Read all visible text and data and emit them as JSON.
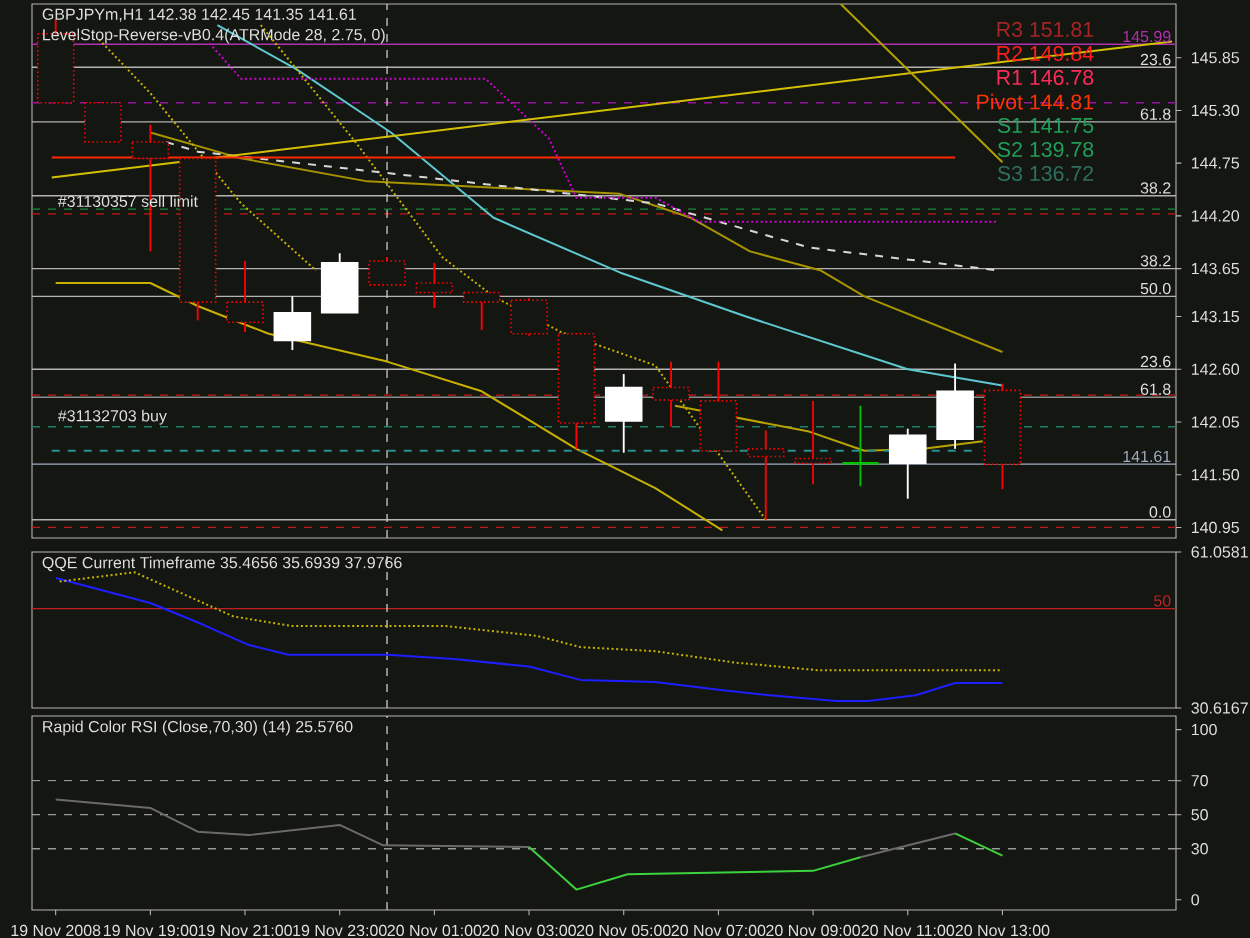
{
  "chart_data": [
    {
      "type": "candlestick",
      "title": "GBPJPYm,H1 142.38 142.45 141.35 141.61",
      "subtitle": "LevelStop-Reverse-vB0.4(ATRMode 28, 2.75, 0)",
      "x": [
        "2008-11-19T17:00",
        "2008-11-19T18:00",
        "2008-11-19T19:00",
        "2008-11-19T20:00",
        "2008-11-19T21:00",
        "2008-11-19T22:00",
        "2008-11-19T23:00",
        "2008-11-20T00:00",
        "2008-11-20T01:00",
        "2008-11-20T02:00",
        "2008-11-20T03:00",
        "2008-11-20T04:00",
        "2008-11-20T05:00",
        "2008-11-20T06:00",
        "2008-11-20T07:00",
        "2008-11-20T08:00",
        "2008-11-20T09:00",
        "2008-11-20T10:00",
        "2008-11-20T11:00",
        "2008-11-20T12:00",
        "2008-11-20T13:00"
      ],
      "ohlc": [
        [
          146.1,
          146.25,
          145.38,
          145.38
        ],
        [
          145.38,
          145.38,
          144.97,
          144.97
        ],
        [
          144.97,
          145.15,
          143.83,
          144.8
        ],
        [
          144.8,
          144.8,
          143.11,
          143.3
        ],
        [
          143.3,
          143.73,
          142.99,
          143.09
        ],
        [
          142.9,
          143.36,
          142.8,
          143.19
        ],
        [
          143.19,
          143.81,
          143.19,
          143.71
        ],
        [
          143.73,
          143.77,
          143.48,
          143.48
        ],
        [
          143.5,
          143.71,
          143.24,
          143.4
        ],
        [
          143.4,
          143.4,
          143.01,
          143.3
        ],
        [
          143.32,
          143.34,
          142.95,
          142.97
        ],
        [
          142.97,
          142.97,
          141.77,
          142.04
        ],
        [
          142.06,
          142.55,
          141.73,
          142.41
        ],
        [
          142.41,
          142.68,
          142.0,
          142.28
        ],
        [
          142.27,
          142.68,
          141.75,
          141.75
        ],
        [
          141.77,
          141.96,
          141.03,
          141.69
        ],
        [
          141.67,
          142.27,
          141.4,
          141.62
        ],
        [
          141.62,
          142.22,
          141.38,
          141.62
        ],
        [
          141.62,
          141.98,
          141.25,
          141.91
        ],
        [
          141.87,
          142.66,
          141.77,
          142.37
        ],
        [
          142.38,
          142.45,
          141.35,
          141.61
        ]
      ],
      "colors": [
        "#ff0000",
        "#ff0000",
        "#ff0000",
        "#ff0000",
        "#ff0000",
        "#ffffff",
        "#ffffff",
        "#ff0000",
        "#ff0000",
        "#ff0000",
        "#ff0000",
        "#ff0000",
        "#ffffff",
        "#ff0000",
        "#ff0000",
        "#ff0000",
        "#ff0000",
        "#00c000",
        "#ffffff",
        "#ffffff",
        "#ff0000"
      ],
      "xlim": [
        "2008-11-19T16:30",
        "2008-11-20T16:40"
      ],
      "ylim": [
        140.84,
        146.41
      ],
      "yticks": [
        {
          "value": 140.95,
          "label": "140.95"
        },
        {
          "value": 141.5,
          "label": "141.50"
        },
        {
          "value": 142.05,
          "label": "142.05"
        },
        {
          "value": 142.6,
          "label": "142.60"
        },
        {
          "value": 143.15,
          "label": "143.15"
        },
        {
          "value": 143.65,
          "label": "143.65"
        },
        {
          "value": 144.2,
          "label": "144.20"
        },
        {
          "value": 144.75,
          "label": "144.75"
        },
        {
          "value": 145.3,
          "label": "145.30"
        },
        {
          "value": 145.85,
          "label": "145.85"
        }
      ],
      "tick_labels": "y",
      "series": [
        {
          "type": "line",
          "color": "#5ec8d0",
          "x": [
            "2008-11-19T20:25",
            "2008-11-19T22:05",
            "2008-11-20T00:05",
            "2008-11-20T02:15",
            "2008-11-20T04:55",
            "2008-11-20T07:35",
            "2008-11-20T11:00",
            "2008-11-20T13:00"
          ],
          "values": [
            146.19,
            145.73,
            145.07,
            144.18,
            143.61,
            143.15,
            142.6,
            142.43
          ]
        },
        {
          "type": "line",
          "color": "#c8b000",
          "x": [
            "2008-11-19T17:00",
            "2008-11-19T19:00",
            "2008-11-19T20:00",
            "2008-11-19T21:30",
            "2008-11-20T00:00",
            "2008-11-20T02:00",
            "2008-11-20T04:00",
            "2008-11-20T05:40",
            "2008-11-20T07:05"
          ],
          "values": [
            143.5,
            143.5,
            143.26,
            142.97,
            142.68,
            142.37,
            141.77,
            141.36,
            140.92
          ]
        },
        {
          "type": "line",
          "color": "#a89400",
          "x": [
            "2008-11-19T19:00",
            "2008-11-19T20:55",
            "2008-11-19T23:35",
            "2008-11-20T04:55",
            "2008-11-20T06:25",
            "2008-11-20T07:40",
            "2008-11-20T09:10",
            "2008-11-20T10:05",
            "2008-11-20T13:00"
          ],
          "values": [
            145.07,
            144.8,
            144.56,
            144.43,
            144.18,
            143.83,
            143.63,
            143.36,
            142.78
          ]
        },
        {
          "type": "line",
          "color": "#c8b400",
          "line_style": "dotted",
          "x": [
            "2008-11-19T17:55",
            "2008-11-19T19:00",
            "2008-11-19T20:55",
            "2008-11-19T22:30"
          ],
          "values": [
            146.04,
            145.48,
            144.33,
            143.63
          ]
        },
        {
          "type": "line",
          "color": "#c8b400",
          "line_style": "dotted",
          "x": [
            "2008-11-19T21:20",
            "2008-11-19T23:20",
            "2008-11-20T01:10",
            "2008-11-20T02:15",
            "2008-11-20T03:40",
            "2008-11-20T05:40",
            "2008-11-20T08:00"
          ],
          "values": [
            146.19,
            144.97,
            143.77,
            143.36,
            142.99,
            142.64,
            141.03
          ]
        },
        {
          "type": "line",
          "color": "#b8a400",
          "x": [
            "2008-11-20T06:05",
            "2008-11-20T08:55",
            "2008-11-20T10:05",
            "2008-11-20T11:20",
            "2008-11-20T12:35"
          ],
          "values": [
            142.22,
            141.95,
            141.75,
            141.77,
            141.85
          ]
        },
        {
          "type": "line",
          "color": "#d8d8d8",
          "line_style": "dashed",
          "x": [
            "2008-11-19T19:20",
            "2008-11-19T20:00",
            "2008-11-20T05:40",
            "2008-11-20T08:55",
            "2008-11-20T12:55"
          ],
          "values": [
            144.97,
            144.87,
            144.33,
            143.87,
            143.63
          ]
        },
        {
          "type": "line",
          "color": "#d000d0",
          "line_style": "dotted",
          "x": [
            "2008-11-19T20:15",
            "2008-11-19T20:55",
            "2008-11-20T02:05",
            "2008-11-20T03:25",
            "2008-11-20T04:00",
            "2008-11-20T05:40",
            "2008-11-20T06:35",
            "2008-11-20T12:55"
          ],
          "values": [
            146.0,
            145.63,
            145.63,
            145.01,
            144.39,
            144.39,
            144.14,
            144.14
          ]
        },
        {
          "type": "line",
          "color": "#d4c000",
          "x": [
            "2008-11-19T16:55",
            "2008-11-20T16:35"
          ],
          "values": [
            144.6,
            146.02
          ]
        },
        {
          "type": "line",
          "color": "#b4a000",
          "x": [
            "2008-11-20T09:35",
            "2008-11-20T13:00"
          ],
          "values": [
            146.41,
            144.76
          ]
        },
        {
          "type": "line",
          "color": "#ff2a00",
          "x": [
            "2008-11-19T16:55",
            "2008-11-20T12:00"
          ],
          "values": [
            144.81,
            144.81
          ]
        },
        {
          "type": "line",
          "color": "#2a8c8c",
          "line_style": "dashed",
          "x": [
            "2008-11-19T16:55",
            "2008-11-20T12:25"
          ],
          "values": [
            141.75,
            141.75
          ]
        }
      ],
      "ref_lines": [
        {
          "axis": "y",
          "value": 145.99,
          "label": "145.99",
          "color": "#b030b0"
        },
        {
          "axis": "y",
          "value": 145.75,
          "color": "#b4b4b4"
        },
        {
          "axis": "y",
          "value": 145.38,
          "color": "#a010a0",
          "line_style": "dashed"
        },
        {
          "axis": "y",
          "value": 145.18,
          "color": "#b4b4b4"
        },
        {
          "axis": "y",
          "value": 144.41,
          "color": "#b4b4b4"
        },
        {
          "axis": "y",
          "value": 144.27,
          "color": "#1e8c3c",
          "line_style": "dashed"
        },
        {
          "axis": "y",
          "value": 144.22,
          "color": "#c01818",
          "line_style": "dashed"
        },
        {
          "axis": "y",
          "value": 143.65,
          "color": "#b4b4b4"
        },
        {
          "axis": "y",
          "value": 143.36,
          "color": "#b4b4b4"
        },
        {
          "axis": "y",
          "value": 142.6,
          "color": "#b4b4b4"
        },
        {
          "axis": "y",
          "value": 142.33,
          "color": "#c01818",
          "line_style": "dashed"
        },
        {
          "axis": "y",
          "value": 142.31,
          "color": "#b4b4b4"
        },
        {
          "axis": "y",
          "value": 142.0,
          "color": "#1e7e6e",
          "line_style": "dashed"
        },
        {
          "axis": "y",
          "value": 141.61,
          "label": "141.61",
          "color": "#a0acc0"
        },
        {
          "axis": "y",
          "value": 141.03,
          "color": "#b4b4b4"
        },
        {
          "axis": "y",
          "value": 140.95,
          "color": "#c01818",
          "line_style": "dashed"
        },
        {
          "axis": "x",
          "value": "2008-11-20T00:00",
          "color": "#c8c8c8",
          "line_style": "dashed"
        }
      ],
      "annotations": [
        "R3 151.81",
        "R2 149.84",
        "R1 146.78",
        "Pivot 144.81",
        "S1 141.75",
        "S2 139.78",
        "S3 136.72",
        {
          "text": "#31130357 sell limit",
          "x": "2008-11-19T17:00",
          "y": 144.27
        },
        {
          "text": "#31132703 buy",
          "x": "2008-11-19T17:00",
          "y": 142.0
        },
        {
          "text": "23.6",
          "x": "2008-11-20T16:40",
          "y": 145.75
        },
        {
          "text": "61.8",
          "x": "2008-11-20T16:40",
          "y": 145.18
        },
        {
          "text": "38.2",
          "x": "2008-11-20T16:40",
          "y": 144.41
        },
        {
          "text": "38.2",
          "x": "2008-11-20T16:40",
          "y": 143.65
        },
        {
          "text": "50.0",
          "x": "2008-11-20T16:40",
          "y": 143.36
        },
        {
          "text": "23.6",
          "x": "2008-11-20T16:40",
          "y": 142.6
        },
        {
          "text": "61.8",
          "x": "2008-11-20T16:40",
          "y": 142.31
        },
        {
          "text": "0.0",
          "x": "2008-11-20T16:40",
          "y": 141.03
        }
      ]
    },
    {
      "type": "line",
      "title": "QQE Current Timeframe 35.4656 35.6939 37.9766",
      "xlim": [
        "2008-11-19T16:30",
        "2008-11-20T16:40"
      ],
      "ylim": [
        30.6167,
        61.0581
      ],
      "yticks": [
        30.6167,
        61.0581
      ],
      "tick_labels": "y",
      "series": [
        {
          "color": "#1e1eff",
          "x": [
            "2008-11-19T17:00",
            "2008-11-19T19:00",
            "2008-11-19T20:05",
            "2008-11-19T21:05",
            "2008-11-19T21:55",
            "2008-11-20T00:00",
            "2008-11-20T01:25",
            "2008-11-20T03:00",
            "2008-11-20T04:05",
            "2008-11-20T05:40",
            "2008-11-20T07:00",
            "2008-11-20T08:05",
            "2008-11-20T09:30",
            "2008-11-20T10:10",
            "2008-11-20T11:10",
            "2008-11-20T12:00",
            "2008-11-20T13:00"
          ],
          "values": [
            56.0,
            51.1,
            47.0,
            42.9,
            41.0,
            41.0,
            40.2,
            38.7,
            36.1,
            35.7,
            34.2,
            33.1,
            32.0,
            32.0,
            33.1,
            35.5,
            35.5
          ]
        },
        {
          "color": "#c8b400",
          "line_style": "dotted",
          "x": [
            "2008-11-19T17:05",
            "2008-11-19T18:40",
            "2008-11-19T20:45",
            "2008-11-19T22:00",
            "2008-11-20T01:15",
            "2008-11-20T03:10",
            "2008-11-20T04:05",
            "2008-11-20T05:40",
            "2008-11-20T07:20",
            "2008-11-20T09:05",
            "2008-11-20T13:00"
          ],
          "values": [
            55.3,
            57.1,
            48.5,
            46.6,
            46.6,
            44.7,
            42.5,
            41.7,
            39.5,
            38.0,
            38.0
          ]
        }
      ],
      "ref_lines": [
        {
          "axis": "y",
          "value": 50,
          "label": "50",
          "color": "#c02020"
        },
        {
          "axis": "x",
          "value": "2008-11-20T00:00",
          "color": "#c8c8c8",
          "line_style": "dashed"
        }
      ]
    },
    {
      "type": "line",
      "title": "Rapid Color RSI (Close,70,30) (14) 25.5760",
      "xlim": [
        "2008-11-19T16:30",
        "2008-11-20T16:40"
      ],
      "ylim": [
        -6,
        108
      ],
      "yticks": [
        0,
        30,
        50,
        70,
        100
      ],
      "xticks": [
        {
          "value": "2008-11-19T17:00",
          "label": "19 Nov 2008"
        },
        {
          "value": "2008-11-19T19:00",
          "label": "19 Nov 19:00"
        },
        {
          "value": "2008-11-19T21:00",
          "label": "19 Nov 21:00"
        },
        {
          "value": "2008-11-19T23:00",
          "label": "19 Nov 23:00"
        },
        {
          "value": "2008-11-20T01:00",
          "label": "20 Nov 01:00"
        },
        {
          "value": "2008-11-20T03:00",
          "label": "20 Nov 03:00"
        },
        {
          "value": "2008-11-20T05:00",
          "label": "20 Nov 05:00"
        },
        {
          "value": "2008-11-20T07:00",
          "label": "20 Nov 07:00"
        },
        {
          "value": "2008-11-20T09:00",
          "label": "20 Nov 09:00"
        },
        {
          "value": "2008-11-20T11:00",
          "label": "20 Nov 11:00"
        },
        {
          "value": "2008-11-20T13:00",
          "label": "20 Nov 13:00"
        }
      ],
      "series": [
        {
          "color": "#6a6a6a",
          "x": [
            "2008-11-19T17:00",
            "2008-11-19T19:00",
            "2008-11-19T20:00",
            "2008-11-19T21:05",
            "2008-11-19T23:00",
            "2008-11-19T23:55",
            "2008-11-20T03:00",
            "2008-11-20T06:00",
            "2008-11-20T10:00",
            "2008-11-20T12:00"
          ],
          "values": [
            59,
            54,
            40,
            38,
            44,
            32,
            31,
            null,
            25,
            39
          ]
        },
        {
          "color": "#3cd23c",
          "x": [
            "2008-11-20T03:00",
            "2008-11-20T04:00",
            "2008-11-20T05:05",
            "2008-11-20T09:00",
            "2008-11-20T10:00",
            "2008-11-20T11:00",
            "2008-11-20T12:00",
            "2008-11-20T13:00"
          ],
          "values": [
            31,
            6,
            15,
            17,
            25,
            null,
            39,
            26
          ]
        }
      ],
      "ref_lines": [
        {
          "axis": "y",
          "value": 70,
          "color": "#9a9a9a",
          "line_style": "dashed"
        },
        {
          "axis": "y",
          "value": 50,
          "color": "#9a9a9a",
          "line_style": "dashed"
        },
        {
          "axis": "y",
          "value": 30,
          "color": "#9a9a9a",
          "line_style": "dashed"
        },
        {
          "axis": "x",
          "value": "2008-11-20T00:00",
          "color": "#c8c8c8",
          "line_style": "dashed"
        }
      ]
    }
  ]
}
